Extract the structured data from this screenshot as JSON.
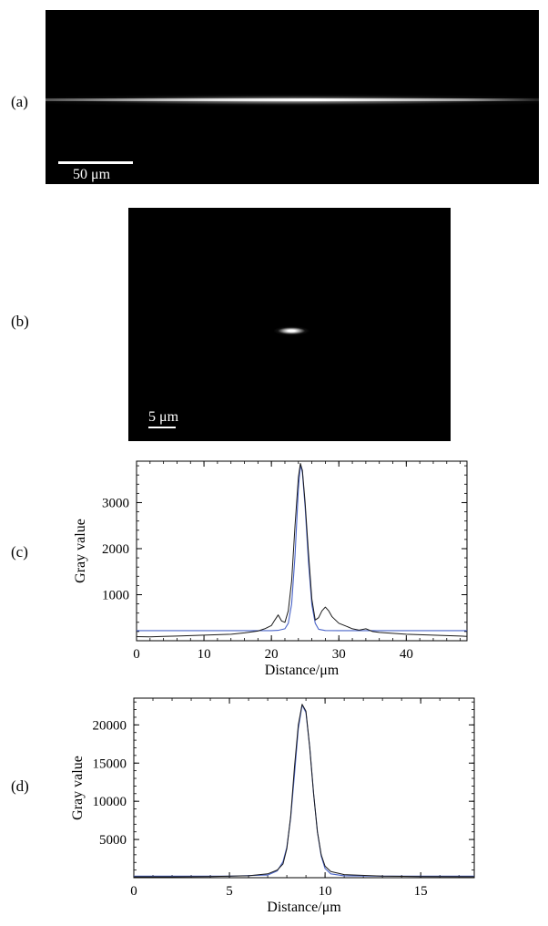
{
  "panels": {
    "a": {
      "label": "(a)",
      "scale_text": "50 μm"
    },
    "b": {
      "label": "(b)",
      "scale_text": "5 μm"
    },
    "c": {
      "label": "(c)"
    },
    "d": {
      "label": "(d)"
    }
  },
  "colors": {
    "measured": "#1a1a1a",
    "fit": "#4a64c8"
  },
  "chart_data": [
    {
      "panel": "c",
      "type": "line",
      "xlabel": "Distance/μm",
      "ylabel": "Gray value",
      "xlim": [
        0,
        49
      ],
      "ylim": [
        0,
        3900
      ],
      "xticks": [
        0,
        10,
        20,
        30,
        40
      ],
      "yticks": [
        1000,
        2000,
        3000
      ],
      "series": [
        {
          "role": "measured",
          "x": [
            0,
            2,
            4,
            6,
            8,
            10,
            12,
            14,
            16,
            18,
            19,
            20,
            20.5,
            21,
            21.5,
            22,
            22.5,
            23,
            23.5,
            24,
            24.3,
            24.6,
            25,
            25.5,
            26,
            26.5,
            27,
            27.5,
            28,
            28.5,
            29,
            30,
            31,
            32,
            33,
            34,
            35,
            36,
            38,
            40,
            42,
            44,
            46,
            48,
            49
          ],
          "y": [
            90,
            85,
            95,
            100,
            110,
            120,
            130,
            140,
            170,
            210,
            260,
            330,
            450,
            560,
            430,
            400,
            650,
            1300,
            2500,
            3550,
            3850,
            3700,
            3000,
            1900,
            900,
            450,
            500,
            650,
            730,
            650,
            520,
            380,
            320,
            260,
            230,
            260,
            200,
            180,
            160,
            140,
            130,
            120,
            110,
            100,
            95
          ]
        },
        {
          "role": "fit",
          "x": [
            0,
            10,
            20,
            21,
            22,
            22.5,
            23,
            23.5,
            24,
            24.3,
            24.6,
            25,
            25.5,
            26,
            26.5,
            27,
            28,
            30,
            40,
            49
          ],
          "y": [
            220,
            220,
            220,
            225,
            260,
            380,
            800,
            1850,
            3300,
            3820,
            3650,
            2900,
            1700,
            780,
            380,
            250,
            222,
            220,
            220,
            220
          ]
        }
      ]
    },
    {
      "panel": "d",
      "type": "line",
      "xlabel": "Distance/μm",
      "ylabel": "Gray value",
      "xlim": [
        0,
        17.8
      ],
      "ylim": [
        0,
        23500
      ],
      "xticks": [
        0,
        5,
        10,
        15
      ],
      "yticks": [
        5000,
        10000,
        15000,
        20000
      ],
      "series": [
        {
          "role": "measured",
          "x": [
            0,
            2,
            4,
            6,
            7,
            7.5,
            7.8,
            8.0,
            8.2,
            8.4,
            8.6,
            8.8,
            9.0,
            9.2,
            9.4,
            9.6,
            9.8,
            10.0,
            10.3,
            11,
            13,
            15,
            17.8
          ],
          "y": [
            120,
            120,
            150,
            250,
            500,
            1000,
            1800,
            3800,
            8000,
            14500,
            20000,
            22700,
            21800,
            17000,
            11000,
            6000,
            3000,
            1500,
            800,
            400,
            200,
            150,
            130
          ]
        },
        {
          "role": "fit",
          "x": [
            0,
            5,
            7,
            7.5,
            7.8,
            8.0,
            8.2,
            8.4,
            8.6,
            8.8,
            9.0,
            9.2,
            9.4,
            9.6,
            9.8,
            10.0,
            10.3,
            11,
            13,
            17.8
          ],
          "y": [
            200,
            200,
            350,
            900,
            2100,
            4000,
            7800,
            13500,
            19500,
            22600,
            21600,
            17000,
            11000,
            6000,
            2800,
            1200,
            500,
            250,
            200,
            200
          ]
        }
      ]
    }
  ]
}
